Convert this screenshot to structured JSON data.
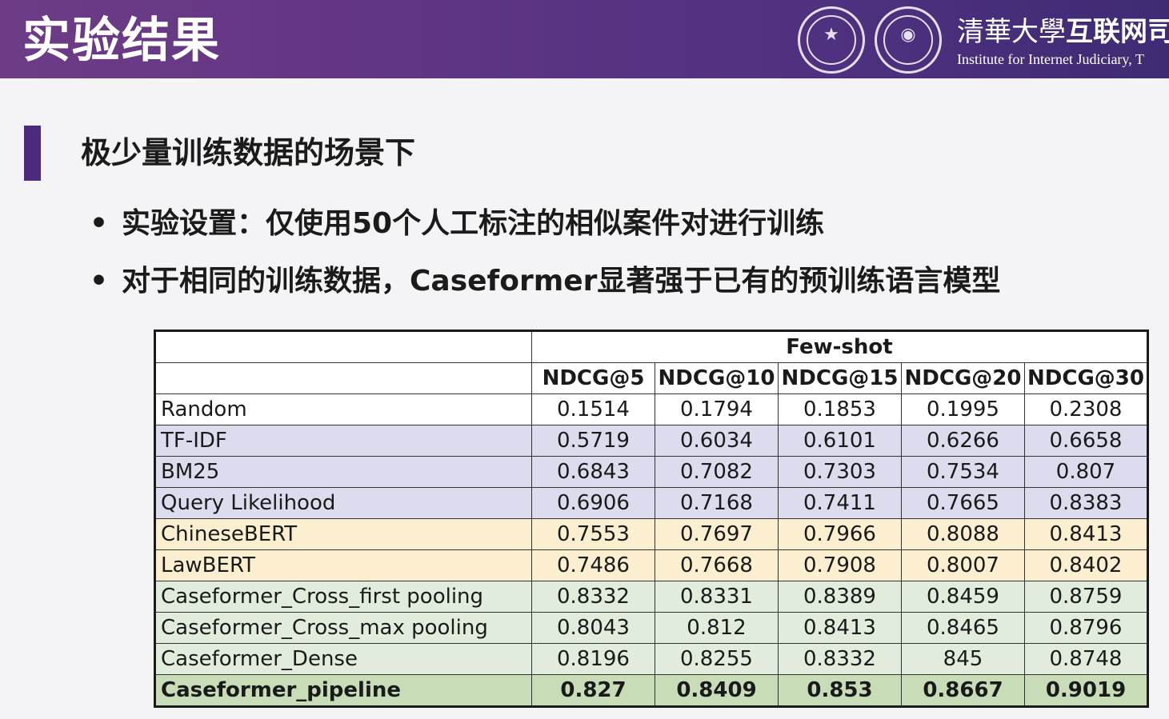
{
  "header": {
    "title": "实验结果",
    "institute_cn_script": "清華大學",
    "institute_cn": "互联网司",
    "institute_en": "Institute for Internet Judiciary, T"
  },
  "section": {
    "heading": "极少量训练数据的场景下",
    "bullets": [
      "实验设置：仅使用50个人工标注的相似案件对进行训练",
      "对于相同的训练数据，Caseformer显著强于已有的预训练语言模型"
    ]
  },
  "table": {
    "group_header": "Few-shot",
    "columns": [
      "NDCG@5",
      "NDCG@10",
      "NDCG@15",
      "NDCG@20",
      "NDCG@30"
    ],
    "rows": [
      {
        "name": "Random",
        "values": [
          "0.1514",
          "0.1794",
          "0.1853",
          "0.1995",
          "0.2308"
        ]
      },
      {
        "name": "TF-IDF",
        "values": [
          "0.5719",
          "0.6034",
          "0.6101",
          "0.6266",
          "0.6658"
        ]
      },
      {
        "name": "BM25",
        "values": [
          "0.6843",
          "0.7082",
          "0.7303",
          "0.7534",
          "0.807"
        ]
      },
      {
        "name": "Query Likelihood",
        "values": [
          "0.6906",
          "0.7168",
          "0.7411",
          "0.7665",
          "0.8383"
        ]
      },
      {
        "name": "ChineseBERT",
        "values": [
          "0.7553",
          "0.7697",
          "0.7966",
          "0.8088",
          "0.8413"
        ]
      },
      {
        "name": "LawBERT",
        "values": [
          "0.7486",
          "0.7668",
          "0.7908",
          "0.8007",
          "0.8402"
        ]
      },
      {
        "name": "Caseformer_Cross_first pooling",
        "values": [
          "0.8332",
          "0.8331",
          "0.8389",
          "0.8459",
          "0.8759"
        ]
      },
      {
        "name": "Caseformer_Cross_max pooling",
        "values": [
          "0.8043",
          "0.812",
          "0.8413",
          "0.8465",
          "0.8796"
        ]
      },
      {
        "name": "Caseformer_Dense",
        "values": [
          "0.8196",
          "0.8255",
          "0.8332",
          "845",
          "0.8748"
        ]
      },
      {
        "name": "Caseformer_pipeline",
        "values": [
          "0.827",
          "0.8409",
          "0.853",
          "0.8667",
          "0.9019"
        ]
      }
    ]
  },
  "colors": {
    "banner": "#5e3484",
    "accent": "#4c2a7e",
    "baseline_row": "#dcdcef",
    "bert_row": "#fbefcf",
    "caseformer_row": "#e2ecdc",
    "best_row": "#c8ddb7"
  },
  "icons": [
    "tsinghua-seal-icon",
    "institute-seal-icon"
  ]
}
